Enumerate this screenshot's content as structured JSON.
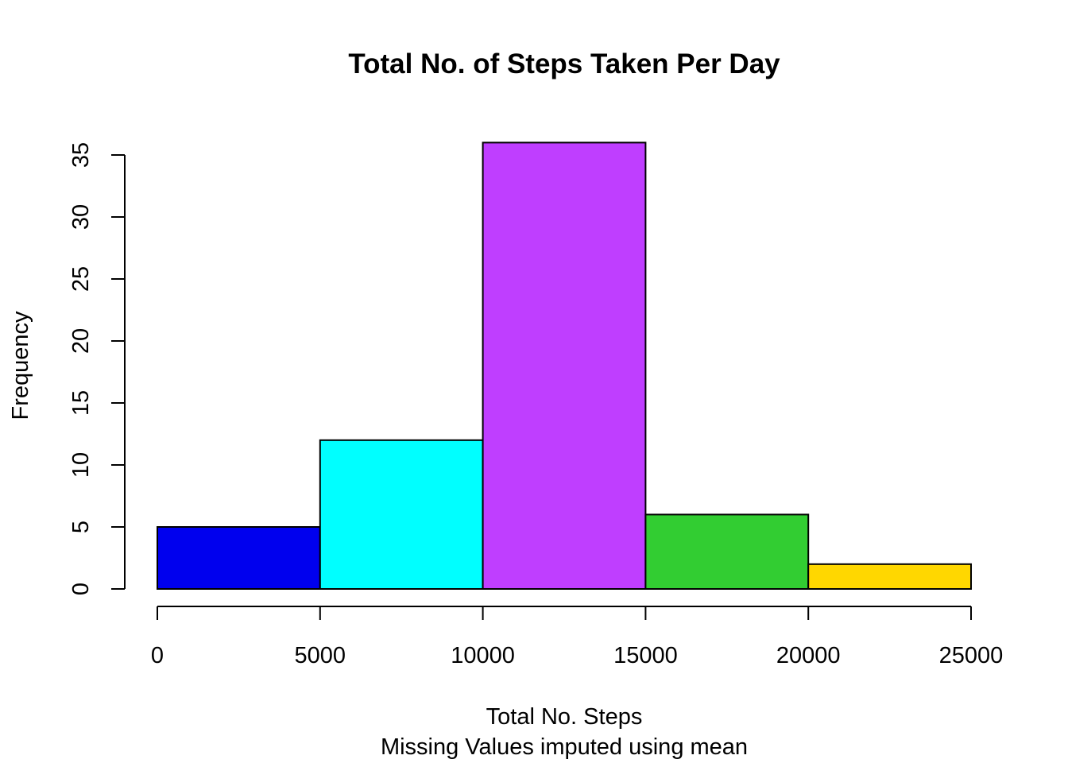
{
  "chart_data": {
    "type": "bar",
    "title": "Total No. of Steps Taken Per Day",
    "xlabel": "Total No. Steps",
    "subtitle": "Missing Values imputed using mean",
    "ylabel": "Frequency",
    "bins": [
      {
        "from": 0,
        "to": 5000,
        "value": 5,
        "color": "#0000EE"
      },
      {
        "from": 5000,
        "to": 10000,
        "value": 12,
        "color": "#00FFFF"
      },
      {
        "from": 10000,
        "to": 15000,
        "value": 36,
        "color": "#BF3EFF"
      },
      {
        "from": 15000,
        "to": 20000,
        "value": 6,
        "color": "#32CD32"
      },
      {
        "from": 20000,
        "to": 25000,
        "value": 2,
        "color": "#FFD700"
      }
    ],
    "xlim": [
      0,
      25000
    ],
    "ylim": [
      0,
      36
    ],
    "x_ticks": [
      0,
      5000,
      10000,
      15000,
      20000,
      25000
    ],
    "y_ticks": [
      0,
      5,
      10,
      15,
      20,
      25,
      30,
      35
    ],
    "grid": false,
    "legend": "none"
  }
}
